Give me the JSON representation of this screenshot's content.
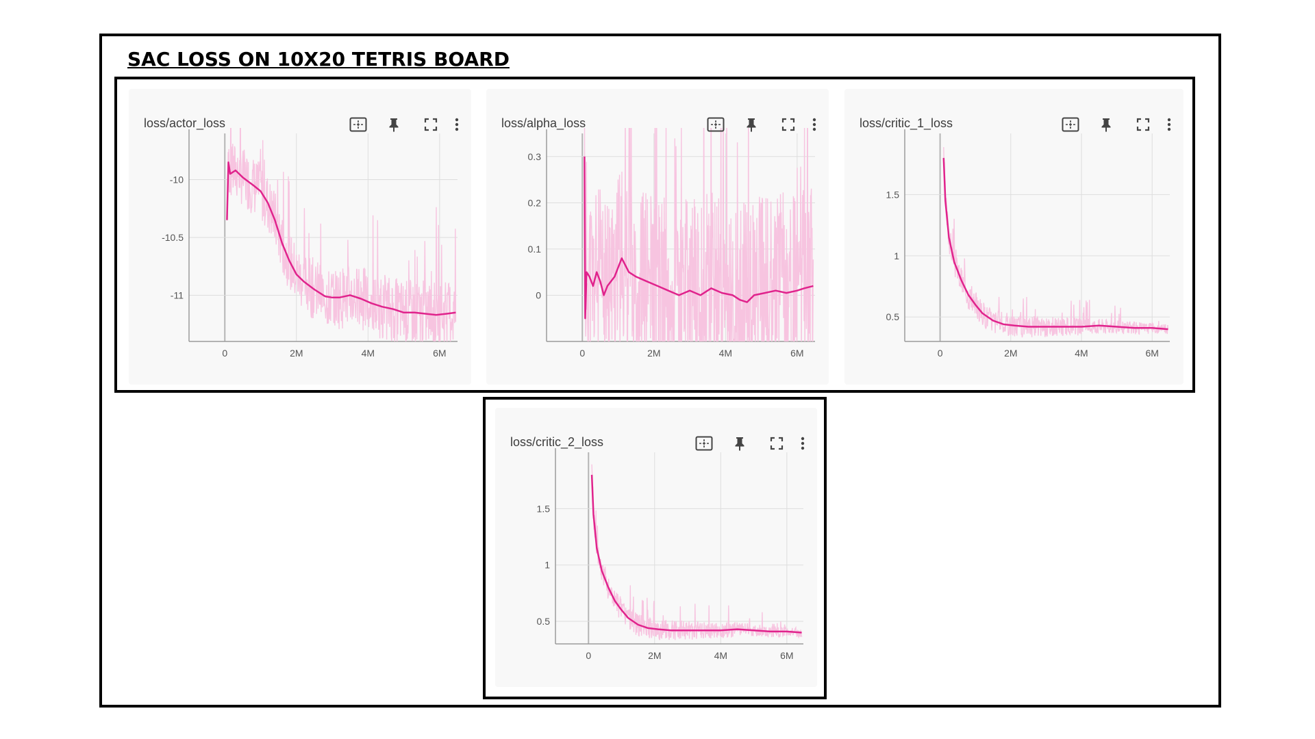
{
  "heading": "SAC LOSS ON 10X20 TETRIS BOARD",
  "toolbar_icons": [
    "fit-domain-icon",
    "pin-icon",
    "fullscreen-icon",
    "more-vert-icon"
  ],
  "colors": {
    "raw": "#f7c4e0",
    "smoothed": "#e0238c",
    "grid": "#dddddd",
    "axis": "#9a9a9a"
  },
  "chart_data": [
    {
      "type": "line",
      "title": "loss/actor_loss",
      "xlabel": "",
      "ylabel": "",
      "x_ticks": [
        {
          "v": 0,
          "label": "0"
        },
        {
          "v": 2000000,
          "label": "2M"
        },
        {
          "v": 4000000,
          "label": "4M"
        },
        {
          "v": 6000000,
          "label": "6M"
        }
      ],
      "y_ticks": [
        {
          "v": -10,
          "label": "-10"
        },
        {
          "v": -10.5,
          "label": "-10.5"
        },
        {
          "v": -11,
          "label": "-11"
        }
      ],
      "xlim": [
        -1000000,
        6500000
      ],
      "ylim": [
        -11.4,
        -9.6
      ],
      "grid": true,
      "series": [
        {
          "values": [
            [
              60000,
              -10.35
            ],
            [
              100000,
              -9.85
            ],
            [
              150000,
              -9.95
            ],
            [
              300000,
              -9.92
            ],
            [
              500000,
              -9.98
            ],
            [
              800000,
              -10.05
            ],
            [
              1000000,
              -10.1
            ],
            [
              1200000,
              -10.2
            ],
            [
              1400000,
              -10.35
            ],
            [
              1600000,
              -10.55
            ],
            [
              1800000,
              -10.7
            ],
            [
              2000000,
              -10.82
            ],
            [
              2200000,
              -10.88
            ],
            [
              2500000,
              -10.95
            ],
            [
              2800000,
              -11.01
            ],
            [
              3000000,
              -11.02
            ],
            [
              3200000,
              -11.02
            ],
            [
              3500000,
              -11.0
            ],
            [
              3800000,
              -11.03
            ],
            [
              4100000,
              -11.07
            ],
            [
              4400000,
              -11.1
            ],
            [
              4700000,
              -11.12
            ],
            [
              5000000,
              -11.15
            ],
            [
              5300000,
              -11.15
            ],
            [
              5600000,
              -11.16
            ],
            [
              5900000,
              -11.17
            ],
            [
              6200000,
              -11.16
            ],
            [
              6450000,
              -11.15
            ]
          ]
        }
      ],
      "raw_noise": {
        "amp_start": 0.25,
        "amp_end": 0.3,
        "seed": 7
      }
    },
    {
      "type": "line",
      "title": "loss/alpha_loss",
      "xlabel": "",
      "ylabel": "",
      "x_ticks": [
        {
          "v": 0,
          "label": "0"
        },
        {
          "v": 2000000,
          "label": "2M"
        },
        {
          "v": 4000000,
          "label": "4M"
        },
        {
          "v": 6000000,
          "label": "6M"
        }
      ],
      "y_ticks": [
        {
          "v": 0.3,
          "label": "0.3"
        },
        {
          "v": 0.2,
          "label": "0.2"
        },
        {
          "v": 0.1,
          "label": "0.1"
        },
        {
          "v": 0,
          "label": "0"
        }
      ],
      "xlim": [
        -1000000,
        6500000
      ],
      "ylim": [
        -0.1,
        0.35
      ],
      "grid": true,
      "series": [
        {
          "values": [
            [
              60000,
              0.3
            ],
            [
              80000,
              -0.05
            ],
            [
              120000,
              0.05
            ],
            [
              200000,
              0.04
            ],
            [
              300000,
              0.02
            ],
            [
              400000,
              0.05
            ],
            [
              500000,
              0.03
            ],
            [
              600000,
              0.0
            ],
            [
              700000,
              0.02
            ],
            [
              900000,
              0.04
            ],
            [
              1100000,
              0.08
            ],
            [
              1300000,
              0.05
            ],
            [
              1500000,
              0.04
            ],
            [
              1800000,
              0.03
            ],
            [
              2100000,
              0.02
            ],
            [
              2400000,
              0.01
            ],
            [
              2700000,
              0.0
            ],
            [
              3000000,
              0.01
            ],
            [
              3300000,
              0.0
            ],
            [
              3600000,
              0.015
            ],
            [
              3900000,
              0.005
            ],
            [
              4200000,
              0.0
            ],
            [
              4400000,
              -0.01
            ],
            [
              4600000,
              -0.015
            ],
            [
              4800000,
              0.0
            ],
            [
              5100000,
              0.005
            ],
            [
              5400000,
              0.01
            ],
            [
              5700000,
              0.005
            ],
            [
              6000000,
              0.01
            ],
            [
              6200000,
              0.015
            ],
            [
              6450000,
              0.02
            ]
          ]
        }
      ],
      "raw_noise": {
        "amp_start": 0.2,
        "amp_end": 0.22,
        "seed": 11
      }
    },
    {
      "type": "line",
      "title": "loss/critic_1_loss",
      "xlabel": "",
      "ylabel": "",
      "x_ticks": [
        {
          "v": 0,
          "label": "0"
        },
        {
          "v": 2000000,
          "label": "2M"
        },
        {
          "v": 4000000,
          "label": "4M"
        },
        {
          "v": 6000000,
          "label": "6M"
        }
      ],
      "y_ticks": [
        {
          "v": 1.5,
          "label": "1.5"
        },
        {
          "v": 1,
          "label": "1"
        },
        {
          "v": 0.5,
          "label": "0.5"
        }
      ],
      "xlim": [
        -1000000,
        6500000
      ],
      "ylim": [
        0.3,
        2.0
      ],
      "grid": true,
      "series": [
        {
          "values": [
            [
              100000,
              1.8
            ],
            [
              150000,
              1.45
            ],
            [
              250000,
              1.15
            ],
            [
              400000,
              0.95
            ],
            [
              600000,
              0.8
            ],
            [
              800000,
              0.68
            ],
            [
              1000000,
              0.6
            ],
            [
              1200000,
              0.53
            ],
            [
              1500000,
              0.47
            ],
            [
              1800000,
              0.44
            ],
            [
              2100000,
              0.43
            ],
            [
              2500000,
              0.42
            ],
            [
              3000000,
              0.42
            ],
            [
              3500000,
              0.42
            ],
            [
              4000000,
              0.42
            ],
            [
              4500000,
              0.43
            ],
            [
              5000000,
              0.42
            ],
            [
              5500000,
              0.41
            ],
            [
              6000000,
              0.41
            ],
            [
              6450000,
              0.4
            ]
          ]
        }
      ],
      "raw_noise": {
        "amp_start": 0.12,
        "amp_end": 0.04,
        "seed": 3
      }
    },
    {
      "type": "line",
      "title": "loss/critic_2_loss",
      "xlabel": "",
      "ylabel": "",
      "x_ticks": [
        {
          "v": 0,
          "label": "0"
        },
        {
          "v": 2000000,
          "label": "2M"
        },
        {
          "v": 4000000,
          "label": "4M"
        },
        {
          "v": 6000000,
          "label": "6M"
        }
      ],
      "y_ticks": [
        {
          "v": 1.5,
          "label": "1.5"
        },
        {
          "v": 1,
          "label": "1"
        },
        {
          "v": 0.5,
          "label": "0.5"
        }
      ],
      "xlim": [
        -1000000,
        6500000
      ],
      "ylim": [
        0.3,
        2.0
      ],
      "grid": true,
      "series": [
        {
          "values": [
            [
              100000,
              1.8
            ],
            [
              150000,
              1.45
            ],
            [
              250000,
              1.15
            ],
            [
              400000,
              0.95
            ],
            [
              600000,
              0.8
            ],
            [
              800000,
              0.68
            ],
            [
              1000000,
              0.6
            ],
            [
              1200000,
              0.53
            ],
            [
              1500000,
              0.47
            ],
            [
              1800000,
              0.44
            ],
            [
              2100000,
              0.43
            ],
            [
              2500000,
              0.42
            ],
            [
              3000000,
              0.42
            ],
            [
              3500000,
              0.42
            ],
            [
              4000000,
              0.42
            ],
            [
              4500000,
              0.43
            ],
            [
              5000000,
              0.42
            ],
            [
              5500000,
              0.41
            ],
            [
              6000000,
              0.41
            ],
            [
              6450000,
              0.4
            ]
          ]
        }
      ],
      "raw_noise": {
        "amp_start": 0.12,
        "amp_end": 0.04,
        "seed": 5
      }
    }
  ]
}
